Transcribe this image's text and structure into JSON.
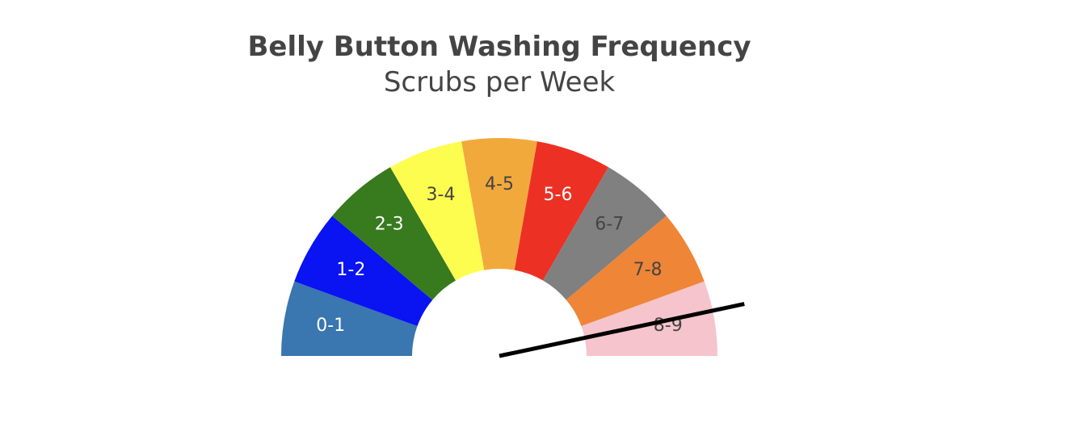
{
  "chart_data": {
    "type": "gauge",
    "title": "Belly Button Washing Frequency",
    "subtitle": "Scrubs per Week",
    "range": [
      0,
      9
    ],
    "needle_value": 8.4,
    "segments": [
      {
        "label": "0-1",
        "color": "#3a76b0",
        "text_color": "#ffffff"
      },
      {
        "label": "1-2",
        "color": "#0a13f2",
        "text_color": "#ffffff"
      },
      {
        "label": "2-3",
        "color": "#387a1e",
        "text_color": "#ffffff"
      },
      {
        "label": "3-4",
        "color": "#fdfd50",
        "text_color": "#444444"
      },
      {
        "label": "4-5",
        "color": "#f2a93c",
        "text_color": "#444444"
      },
      {
        "label": "5-6",
        "color": "#ec3124",
        "text_color": "#ffffff"
      },
      {
        "label": "6-7",
        "color": "#808080",
        "text_color": "#444444"
      },
      {
        "label": "7-8",
        "color": "#ef8537",
        "text_color": "#444444"
      },
      {
        "label": "8-9",
        "color": "#f6c4cc",
        "text_color": "#444444"
      }
    ],
    "needle_color": "#000000"
  }
}
